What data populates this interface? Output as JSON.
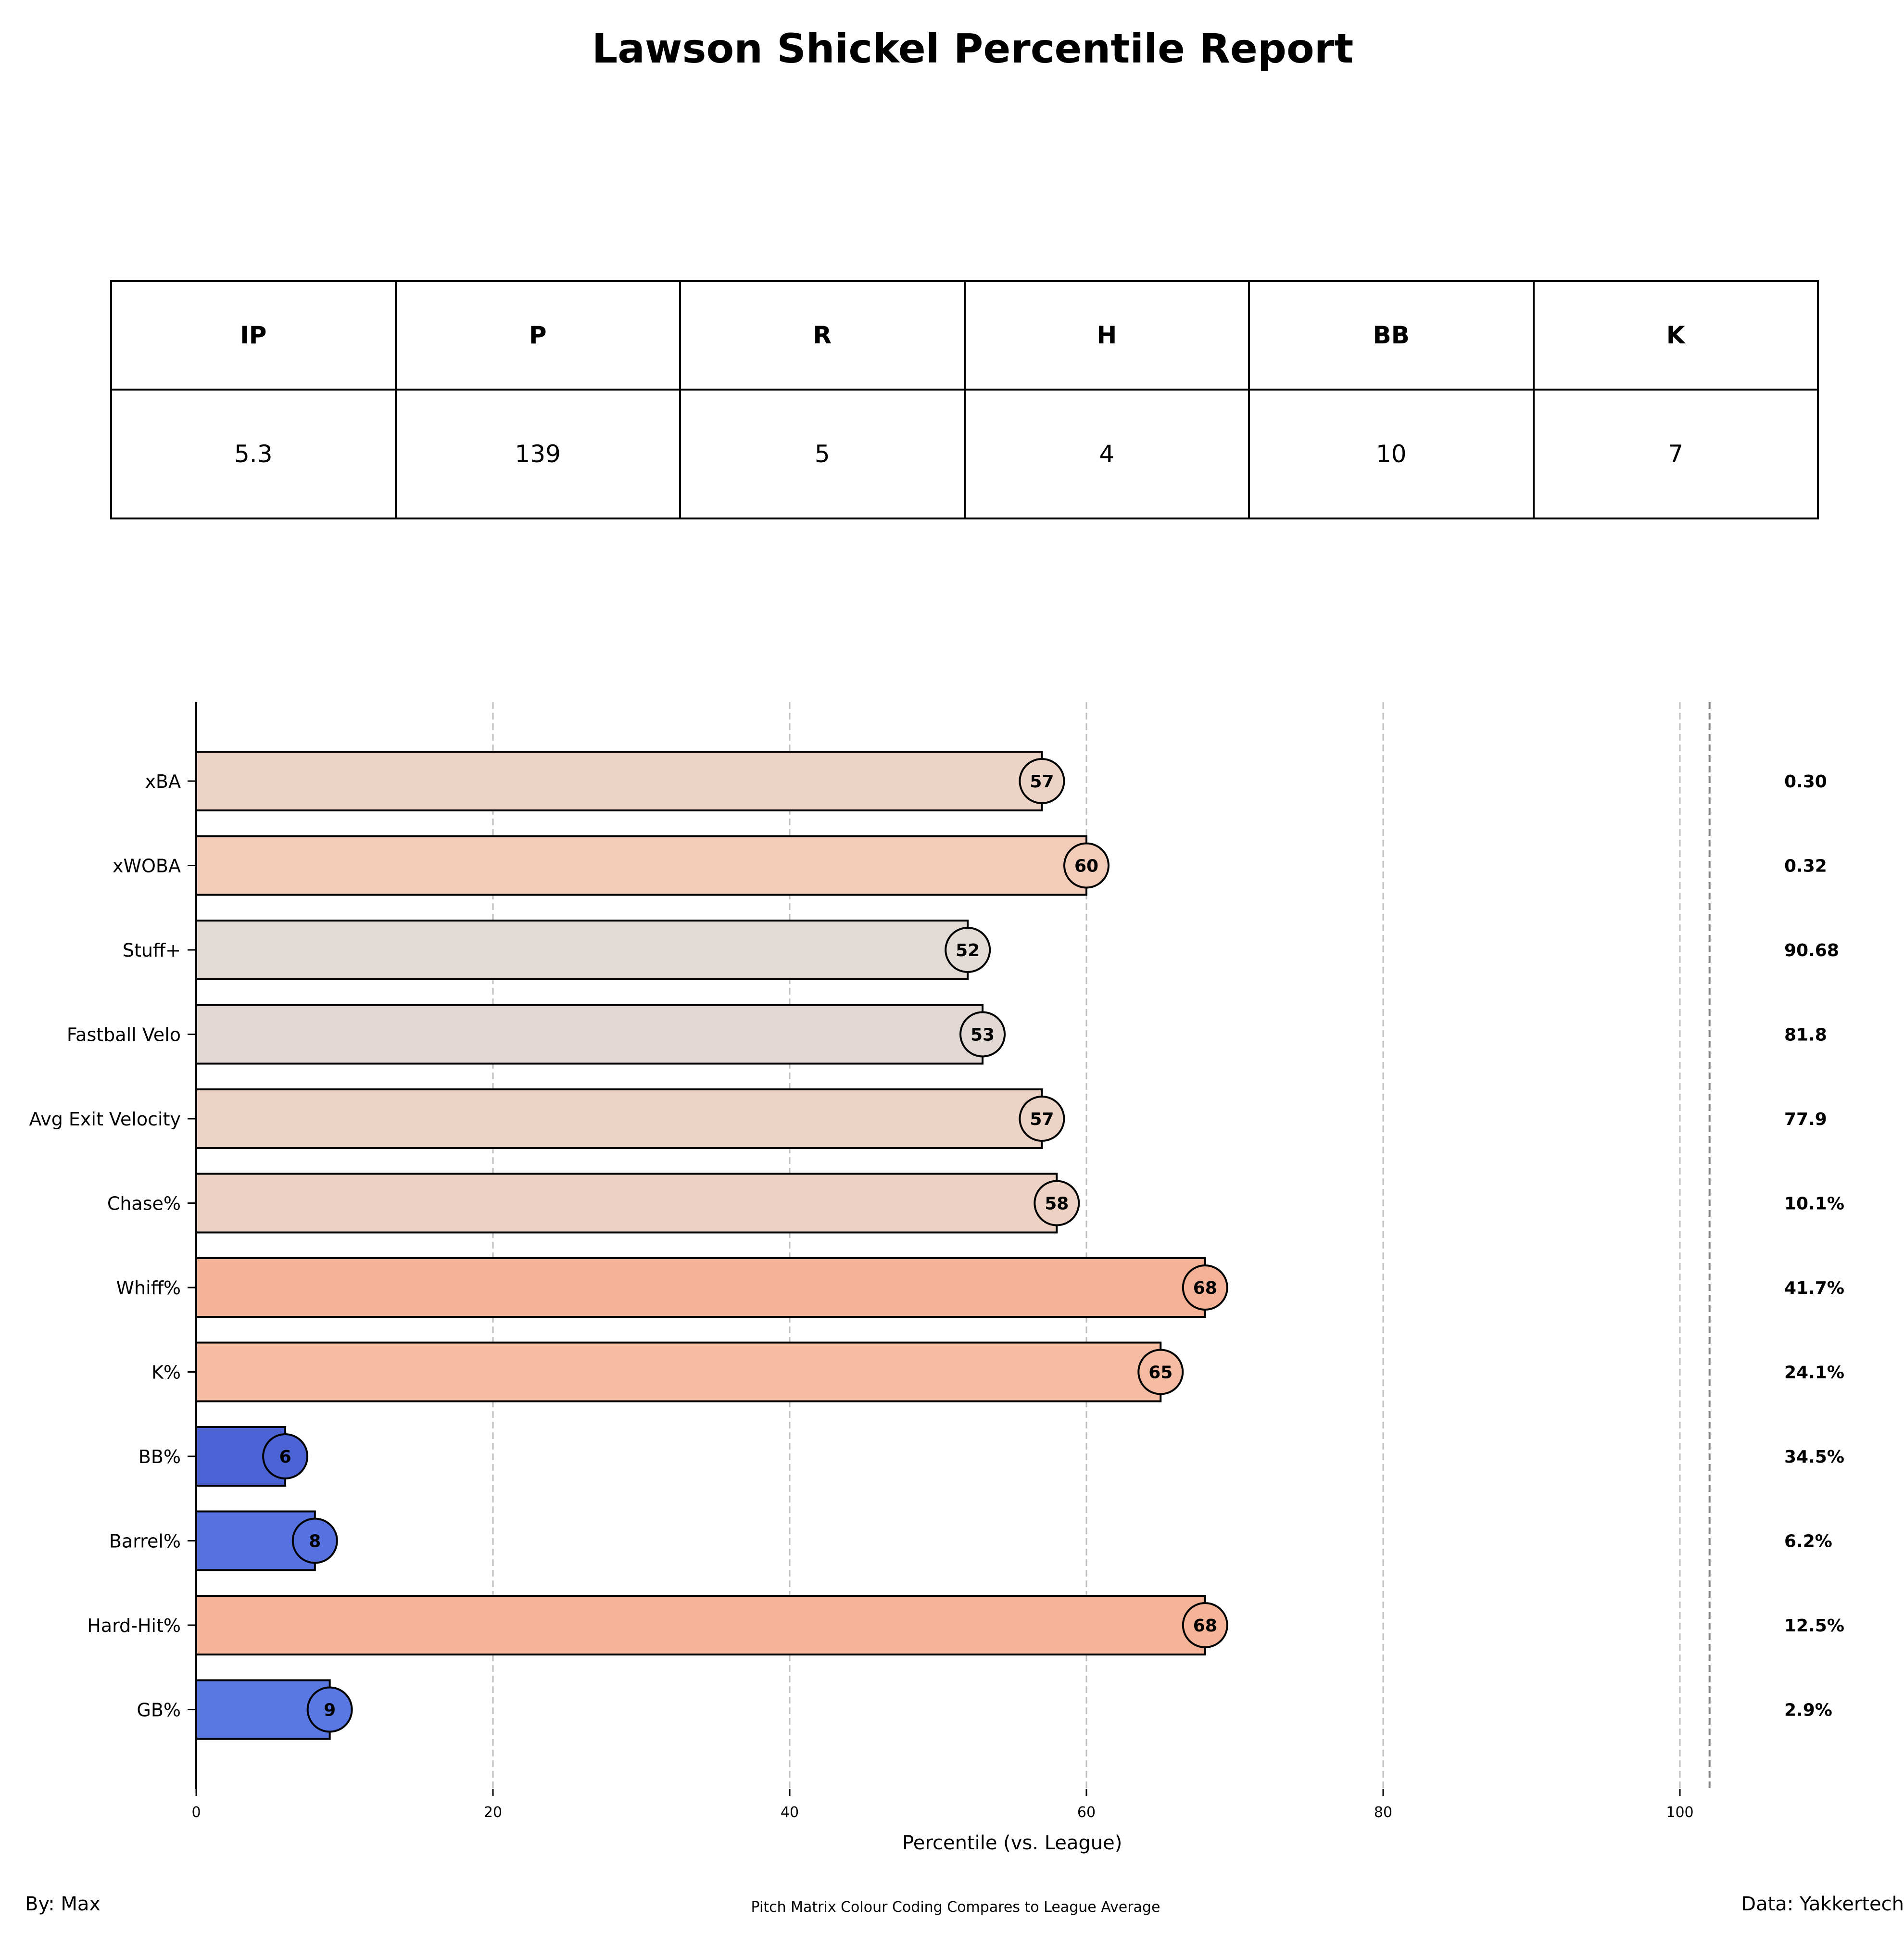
{
  "title": "Lawson Shickel Percentile Report",
  "stats_table": {
    "headers": [
      "IP",
      "P",
      "R",
      "H",
      "BB",
      "K"
    ],
    "values": [
      "5.3",
      "139",
      "5",
      "4",
      "10",
      "7"
    ]
  },
  "chart_data": {
    "type": "bar",
    "orientation": "horizontal",
    "categories": [
      "xBA",
      "xWOBA",
      "Stuff+",
      "Fastball Velo",
      "Avg Exit Velocity",
      "Chase%",
      "Whiff%",
      "K%",
      "BB%",
      "Barrel%",
      "Hard-Hit%",
      "GB%"
    ],
    "values": [
      57,
      60,
      52,
      53,
      57,
      58,
      68,
      65,
      6,
      8,
      68,
      9
    ],
    "data_labels": [
      "57",
      "60",
      "52",
      "53",
      "57",
      "58",
      "68",
      "65",
      "6",
      "8",
      "68",
      "9"
    ],
    "stat_values": [
      "0.30",
      "0.32",
      "90.68",
      "81.8",
      "77.9",
      "10.1%",
      "41.7%",
      "24.1%",
      "34.5%",
      "6.2%",
      "12.5%",
      "2.9%"
    ],
    "bar_colors": [
      "#ecd3c6",
      "#f2cbb9",
      "#e1dad5",
      "#e2d9d4",
      "#ecd3c6",
      "#edd2c4",
      "#f4b196",
      "#f5bca3",
      "#4c63d5",
      "#5671e0",
      "#f5b397",
      "#5978e3"
    ],
    "xlabel": "Percentile (vs. League)",
    "ylabel": "",
    "xlim": [
      0,
      110
    ],
    "xticks": [
      0,
      20,
      40,
      60,
      80,
      100
    ],
    "grid": "vertical dashed",
    "reference_line": 102
  },
  "footer": {
    "byline": "By: Max",
    "note": "Pitch Matrix Colour Coding Compares to League Average",
    "source": "Data: Yakkertech"
  }
}
